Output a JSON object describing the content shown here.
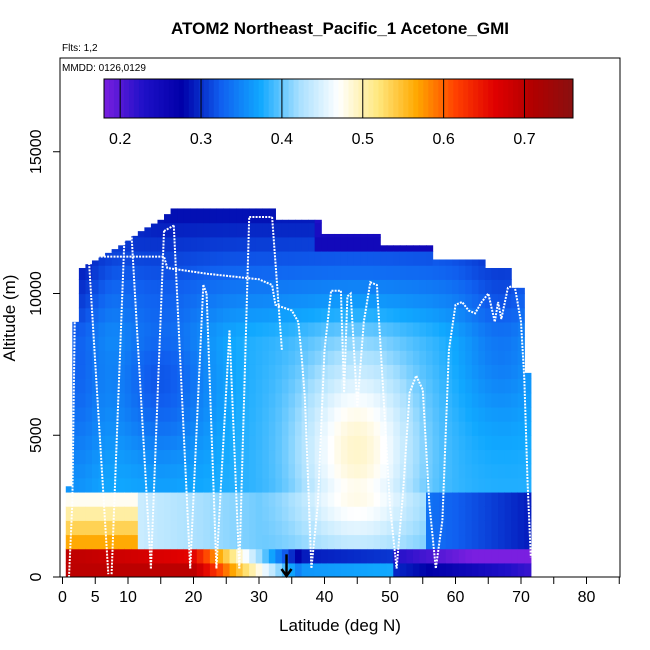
{
  "chart_data": {
    "type": "heatmap",
    "title": "ATOM2 Northeast_Pacific_1 Acetone_GMI",
    "subtitle_flights": "Flts: 1,2",
    "subtitle_dates": "MMDD: 0126,0129",
    "xlabel": "Latitude (deg N)",
    "ylabel": "Altitude (m)",
    "xlim": [
      0,
      85
    ],
    "ylim": [
      0,
      18000
    ],
    "x_ticks": [
      0,
      5,
      10,
      20,
      30,
      40,
      50,
      60,
      70,
      80
    ],
    "x_minor_ticks": [
      15,
      25,
      35,
      45,
      55,
      65,
      75,
      85
    ],
    "y_ticks": [
      0,
      5000,
      10000,
      15000
    ],
    "colorbar": {
      "range": [
        0.18,
        0.76
      ],
      "ticks": [
        0.2,
        0.3,
        0.4,
        0.5,
        0.6,
        0.7
      ],
      "stops": [
        "#7a1fe0",
        "#1f10c8",
        "#0000a8",
        "#1060f0",
        "#10a8ff",
        "#a8e0ff",
        "#ffffff",
        "#ffe880",
        "#ffa800",
        "#ff4000",
        "#e00000",
        "#b00000",
        "#8a1010"
      ]
    },
    "grid": false,
    "curtain": {
      "x_range": [
        0.5,
        71.5
      ],
      "altitude_bins_m": [
        0,
        500,
        1000,
        1500,
        2000,
        2500,
        3000,
        3500,
        4000,
        4500,
        5000,
        5500,
        6000,
        6500,
        7000,
        7500,
        8000,
        8500,
        9000,
        9500,
        10000,
        10500,
        11000,
        11500,
        12000,
        12500,
        13000
      ],
      "top_envelope": [
        [
          0.5,
          800
        ],
        [
          1,
          3200
        ],
        [
          1.5,
          6000
        ],
        [
          2,
          9000
        ],
        [
          3,
          10900
        ],
        [
          6,
          11300
        ],
        [
          9,
          11700
        ],
        [
          12,
          12200
        ],
        [
          15,
          12600
        ],
        [
          17,
          13000
        ],
        [
          32,
          13000
        ],
        [
          32,
          12600
        ],
        [
          39,
          12600
        ],
        [
          39,
          12100
        ],
        [
          48,
          12100
        ],
        [
          48,
          11700
        ],
        [
          56,
          11700
        ],
        [
          56,
          11200
        ],
        [
          64,
          11200
        ],
        [
          64,
          10900
        ],
        [
          68,
          10900
        ],
        [
          68,
          10200
        ],
        [
          70,
          10200
        ],
        [
          70,
          9200
        ],
        [
          71,
          7200
        ],
        [
          71.5,
          4000
        ],
        [
          71.5,
          2000
        ],
        [
          71,
          700
        ],
        [
          70.5,
          0
        ]
      ],
      "bottom_envelope": [
        [
          0,
          0
        ],
        [
          0.5,
          0
        ]
      ]
    },
    "flight_track": [
      [
        1,
        0
      ],
      [
        1.5,
        2600
      ],
      [
        2,
        11300
      ],
      [
        5,
        11300
      ],
      [
        7,
        11300
      ],
      [
        9,
        11300
      ],
      [
        11,
        11300
      ],
      [
        14,
        11300
      ],
      [
        15.5,
        11300
      ],
      [
        16,
        10900
      ],
      [
        19,
        10800
      ],
      [
        22,
        10700
      ],
      [
        26,
        10600
      ],
      [
        30,
        10500
      ],
      [
        32,
        10300
      ],
      [
        32.5,
        9600
      ],
      [
        35,
        9400
      ],
      [
        36,
        9000
      ],
      [
        36.5,
        7800
      ],
      [
        37,
        6300
      ],
      [
        37.5,
        3400
      ],
      [
        38,
        300
      ],
      [
        39,
        2600
      ],
      [
        40,
        8000
      ],
      [
        41,
        10100
      ],
      [
        42.5,
        10100
      ],
      [
        43,
        6500
      ],
      [
        43.5,
        9900
      ],
      [
        44,
        10000
      ],
      [
        45,
        6000
      ],
      [
        46,
        9000
      ],
      [
        47,
        10400
      ],
      [
        48,
        10300
      ],
      [
        50,
        2500
      ],
      [
        51,
        300
      ],
      [
        52,
        3000
      ],
      [
        53,
        6500
      ],
      [
        54,
        7100
      ],
      [
        55,
        6600
      ],
      [
        56,
        2600
      ],
      [
        57,
        300
      ],
      [
        58,
        2000
      ],
      [
        59,
        8000
      ],
      [
        60,
        9600
      ],
      [
        61,
        9700
      ],
      [
        62,
        9400
      ],
      [
        63,
        9300
      ],
      [
        64,
        9700
      ],
      [
        65,
        10000
      ],
      [
        66,
        9000
      ],
      [
        66.5,
        9700
      ],
      [
        67,
        9100
      ],
      [
        68,
        10200
      ],
      [
        69,
        10300
      ],
      [
        70,
        9000
      ],
      [
        70.5,
        7000
      ],
      [
        71,
        3400
      ],
      [
        71.5,
        700
      ]
    ],
    "flight_track_profiles": [
      [
        4,
        11300,
        7,
        100
      ],
      [
        7.5,
        100,
        9.5,
        12200
      ],
      [
        9.5,
        12200,
        10.5,
        12200
      ],
      [
        10.5,
        12200,
        13.5,
        300
      ],
      [
        13.5,
        300,
        15.5,
        12200
      ],
      [
        15.5,
        12200,
        17,
        12400
      ],
      [
        17,
        12400,
        19.5,
        300
      ],
      [
        19.5,
        300,
        21.5,
        10300
      ],
      [
        21.5,
        10300,
        22,
        10000
      ],
      [
        22,
        10000,
        23.5,
        300
      ],
      [
        23.5,
        300,
        25.5,
        8700
      ],
      [
        25.5,
        8700,
        27,
        300
      ],
      [
        27,
        300,
        28.5,
        12700
      ],
      [
        28.5,
        12700,
        32,
        12700
      ],
      [
        32,
        12700,
        33.5,
        8000
      ]
    ],
    "annotations": [
      {
        "type": "arrow",
        "x": 34.2,
        "y_from": 800,
        "y_to": 0
      }
    ]
  }
}
